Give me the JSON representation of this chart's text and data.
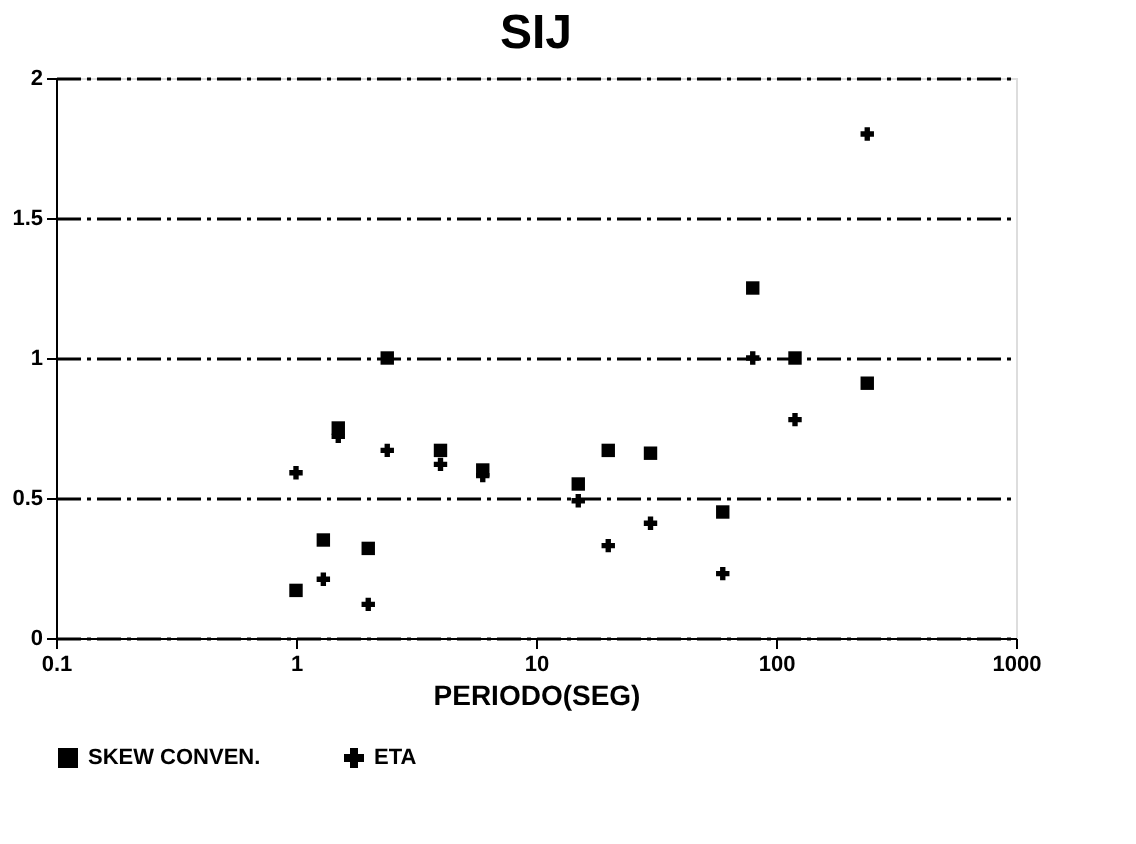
{
  "chart_data": {
    "type": "scatter",
    "title": "SIJ",
    "xlabel": "PERIODO(SEG)",
    "log": "x",
    "xlim": [
      0.1,
      1000
    ],
    "xticks": [
      0.1,
      1,
      10,
      100,
      1000
    ],
    "ylim": [
      0,
      2
    ],
    "yticks": [
      0,
      0.5,
      1,
      1.5,
      2
    ],
    "grid": "y",
    "legend": "bottom",
    "series": [
      {
        "name": "SKEW CONVEN.",
        "color": "#000000",
        "marker": "square",
        "x": [
          1,
          1.3,
          1.5,
          2,
          2.4,
          4,
          6,
          15,
          20,
          30,
          60,
          80,
          120,
          240
        ],
        "values": [
          0.17,
          0.35,
          0.75,
          0.32,
          1.0,
          0.67,
          0.6,
          0.55,
          0.67,
          0.66,
          0.45,
          1.25,
          1.0,
          0.91
        ]
      },
      {
        "name": "ETA",
        "color": "#000000",
        "marker": "cross",
        "x": [
          1,
          1.3,
          1.5,
          2,
          2.4,
          4,
          6,
          15,
          20,
          30,
          60,
          80,
          120,
          240
        ],
        "values": [
          0.59,
          0.21,
          0.72,
          0.12,
          0.67,
          0.62,
          0.58,
          0.49,
          0.33,
          0.41,
          0.23,
          1.0,
          0.78,
          1.8
        ]
      }
    ]
  }
}
